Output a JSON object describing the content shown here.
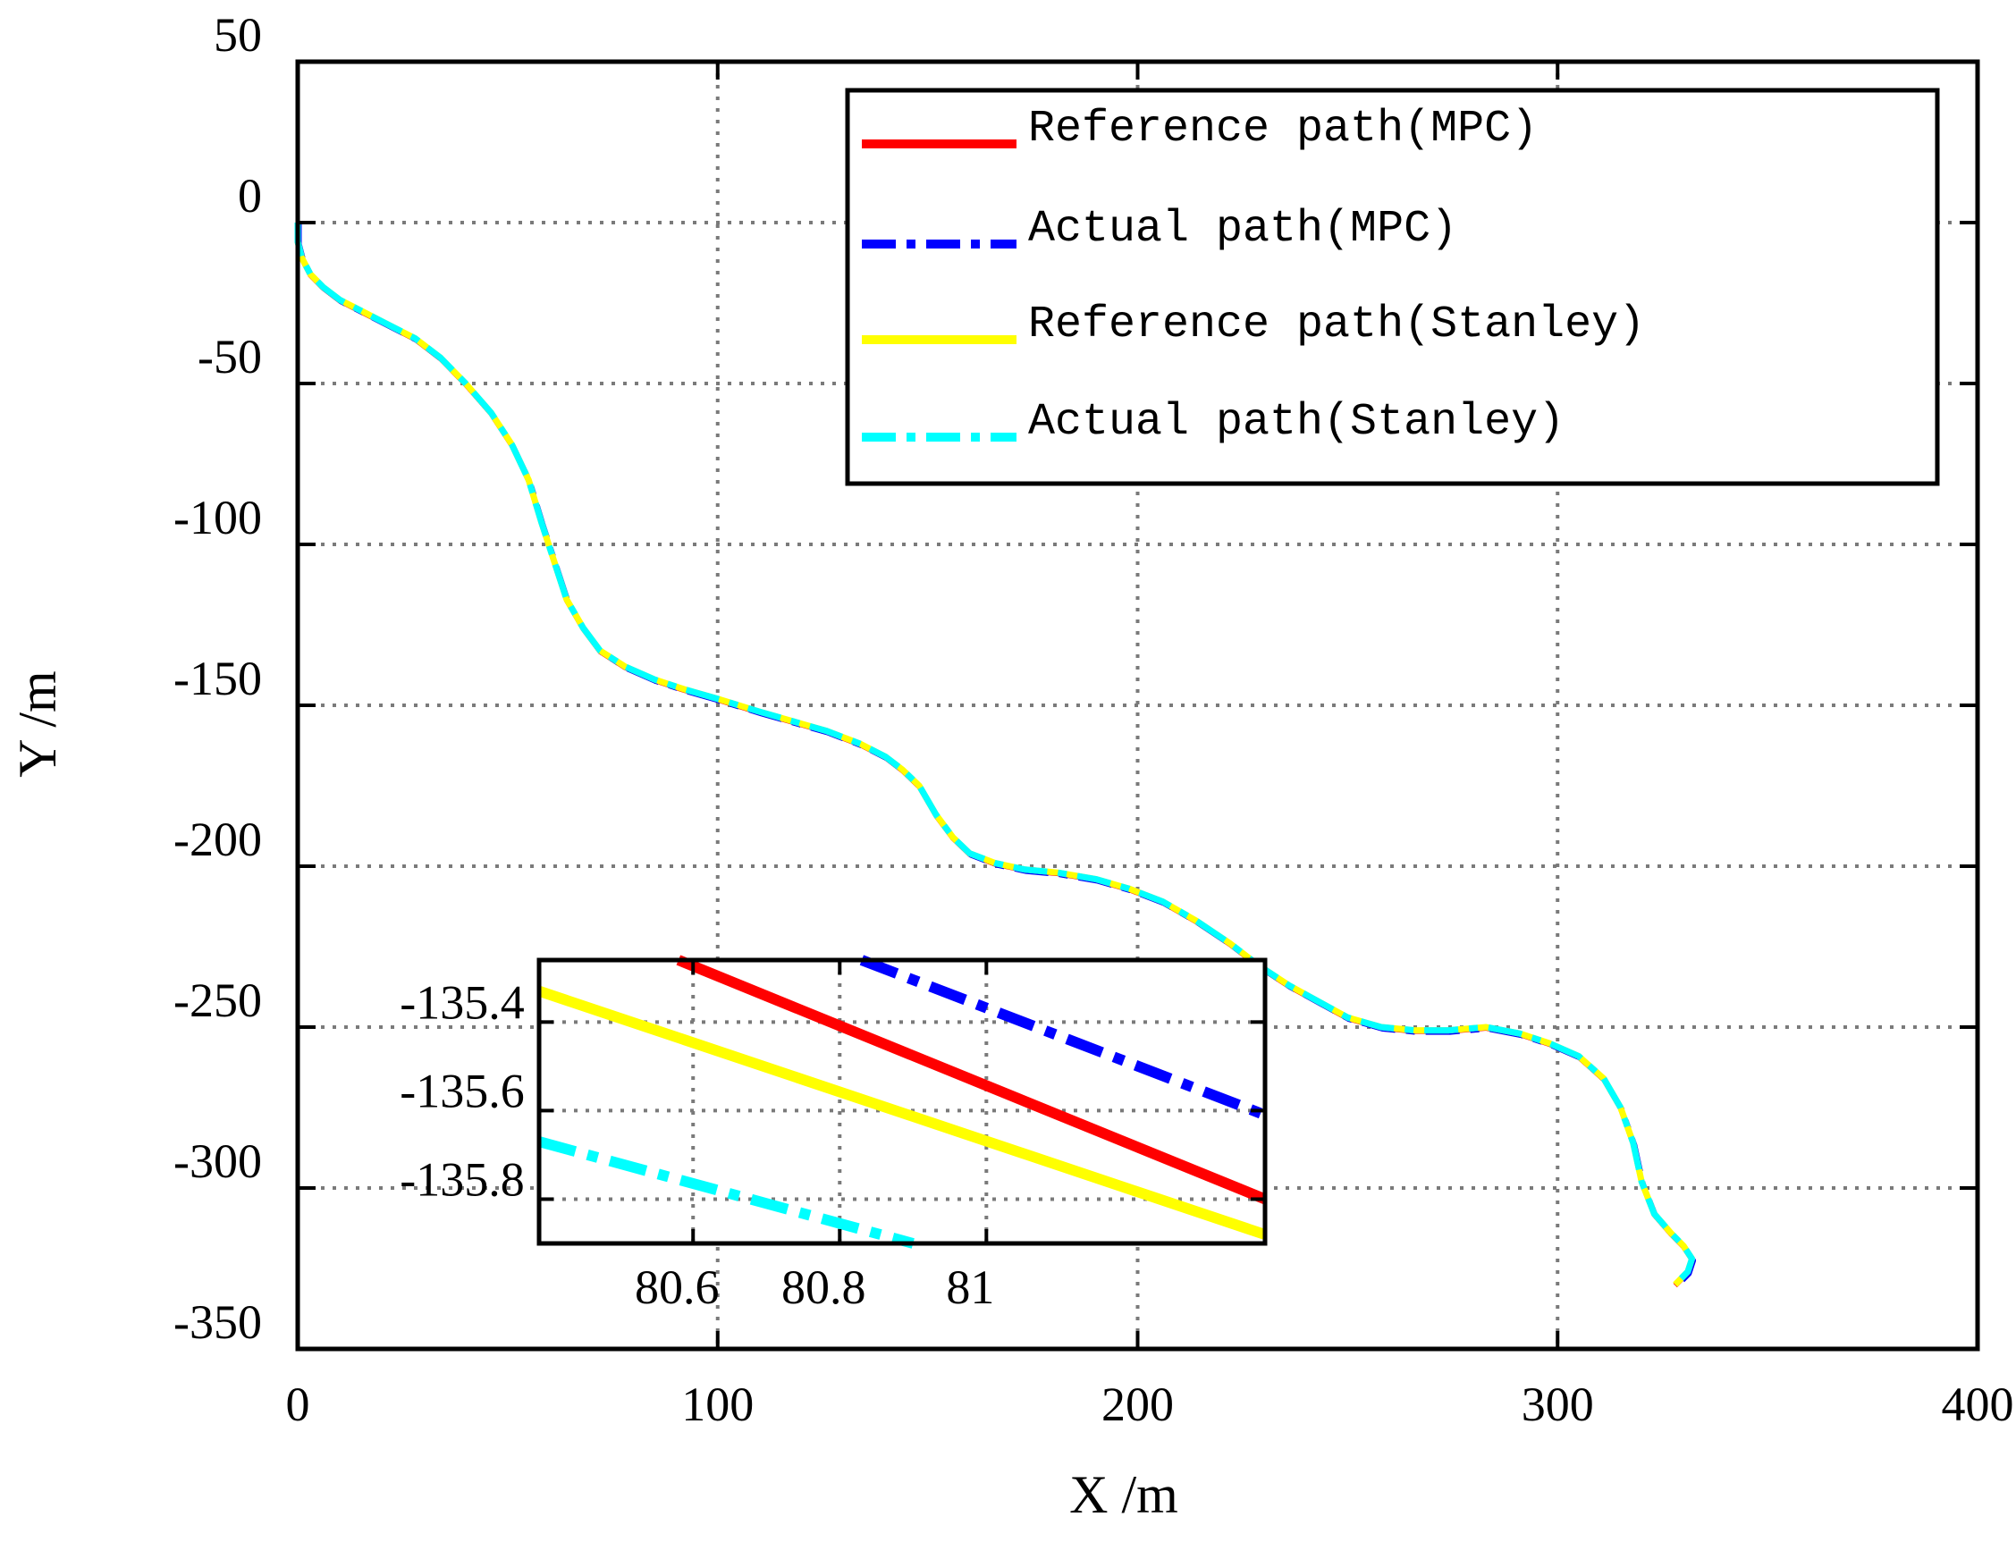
{
  "chart_data": {
    "type": "line",
    "xlabel": "X /m",
    "ylabel": "Y /m",
    "xlim": [
      0,
      400
    ],
    "ylim": [
      -350,
      50
    ],
    "xticks": [
      0,
      100,
      200,
      300,
      400
    ],
    "yticks": [
      50,
      0,
      -50,
      -100,
      -150,
      -200,
      -250,
      -300,
      -350
    ],
    "xtick_labels": [
      "0",
      "100",
      "200",
      "300",
      "400"
    ],
    "ytick_labels": [
      "50",
      "0",
      "-50",
      "-100",
      "-150",
      "-200",
      "-250",
      "-300",
      "-350"
    ],
    "grid": true,
    "legend_position": "top-right",
    "path": [
      [
        0,
        0
      ],
      [
        0,
        -6
      ],
      [
        1,
        -11
      ],
      [
        3,
        -16
      ],
      [
        6,
        -20
      ],
      [
        10,
        -24
      ],
      [
        16,
        -28
      ],
      [
        22,
        -32
      ],
      [
        28,
        -36
      ],
      [
        34,
        -42
      ],
      [
        40,
        -50
      ],
      [
        46,
        -59
      ],
      [
        51,
        -69
      ],
      [
        55,
        -80
      ],
      [
        58,
        -93
      ],
      [
        61,
        -105
      ],
      [
        64,
        -117
      ],
      [
        68,
        -126
      ],
      [
        72,
        -133
      ],
      [
        78,
        -138
      ],
      [
        85,
        -142
      ],
      [
        92,
        -145
      ],
      [
        100,
        -148
      ],
      [
        110,
        -152
      ],
      [
        118,
        -155
      ],
      [
        126,
        -158
      ],
      [
        134,
        -162
      ],
      [
        140,
        -166
      ],
      [
        144,
        -170
      ],
      [
        148,
        -175
      ],
      [
        152,
        -184
      ],
      [
        156,
        -191
      ],
      [
        160,
        -196
      ],
      [
        166,
        -199
      ],
      [
        173,
        -201
      ],
      [
        181,
        -202
      ],
      [
        190,
        -204
      ],
      [
        198,
        -207
      ],
      [
        206,
        -211
      ],
      [
        214,
        -217
      ],
      [
        222,
        -224
      ],
      [
        229,
        -231
      ],
      [
        236,
        -237
      ],
      [
        243,
        -242
      ],
      [
        250,
        -247
      ],
      [
        258,
        -250
      ],
      [
        266,
        -251
      ],
      [
        274,
        -251
      ],
      [
        283,
        -250
      ],
      [
        291,
        -252
      ],
      [
        298,
        -255
      ],
      [
        305,
        -259
      ],
      [
        311,
        -266
      ],
      [
        315,
        -275
      ],
      [
        318,
        -286
      ],
      [
        320,
        -298
      ],
      [
        323,
        -308
      ],
      [
        327,
        -314
      ],
      [
        330,
        -318
      ],
      [
        332,
        -322
      ],
      [
        331,
        -326
      ],
      [
        328,
        -330
      ]
    ],
    "series": [
      {
        "name": "Reference path(MPC)",
        "color": "#ff0000",
        "style": "solid"
      },
      {
        "name": "Actual path(MPC)",
        "color": "#0000ff",
        "style": "dashdot"
      },
      {
        "name": "Reference path(Stanley)",
        "color": "#ffff00",
        "style": "solid"
      },
      {
        "name": "Actual path(Stanley)",
        "color": "#00ffff",
        "style": "dashdot"
      }
    ],
    "inset": {
      "xlim": [
        80.39,
        81.38
      ],
      "ylim": [
        -135.9,
        -135.26
      ],
      "xticks": [
        80.6,
        80.8,
        81
      ],
      "xtick_labels": [
        "80.6",
        "80.8",
        "81"
      ],
      "yticks": [
        -135.4,
        -135.6,
        -135.8
      ],
      "ytick_labels": [
        "-135.4",
        "-135.6",
        "-135.8"
      ],
      "series": [
        {
          "name": "Reference path(MPC)",
          "color": "#ff0000",
          "style": "solid",
          "x": [
            80.58,
            81.38
          ],
          "y": [
            -135.26,
            -135.8
          ]
        },
        {
          "name": "Actual path(MPC)",
          "color": "#0000ff",
          "style": "dashdot",
          "x": [
            80.83,
            81.38
          ],
          "y": [
            -135.26,
            -135.61
          ]
        },
        {
          "name": "Reference path(Stanley)",
          "color": "#ffff00",
          "style": "solid",
          "x": [
            80.39,
            81.38
          ],
          "y": [
            -135.33,
            -135.88
          ]
        },
        {
          "name": "Actual path(Stanley)",
          "color": "#00ffff",
          "style": "dashdot",
          "x": [
            80.39,
            80.9
          ],
          "y": [
            -135.67,
            -135.9
          ]
        }
      ]
    }
  }
}
